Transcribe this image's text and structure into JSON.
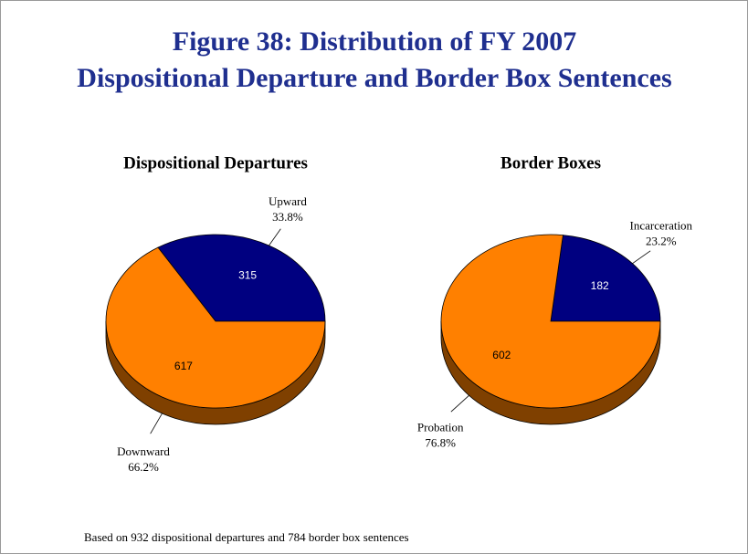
{
  "title": [
    "Figure 38: Distribution of FY 2007",
    "Dispositional Departure and Border Box Sentences"
  ],
  "note": "Based on 932 dispositional departures and 784 border box sentences",
  "chart_data": [
    {
      "type": "pie",
      "title": "Dispositional Departures",
      "categories": [
        "Upward",
        "Downward"
      ],
      "values": [
        315,
        617
      ],
      "percentages": [
        33.8,
        66.2
      ],
      "percent_labels": [
        "33.8%",
        "66.2%"
      ],
      "colors": [
        "#000080",
        "#ff8000"
      ]
    },
    {
      "type": "pie",
      "title": "Border Boxes",
      "categories": [
        "Incarceration",
        "Probation"
      ],
      "values": [
        182,
        602
      ],
      "percentages": [
        23.2,
        76.8
      ],
      "percent_labels": [
        "23.2%",
        "76.8%"
      ],
      "colors": [
        "#000080",
        "#ff8000"
      ]
    }
  ]
}
